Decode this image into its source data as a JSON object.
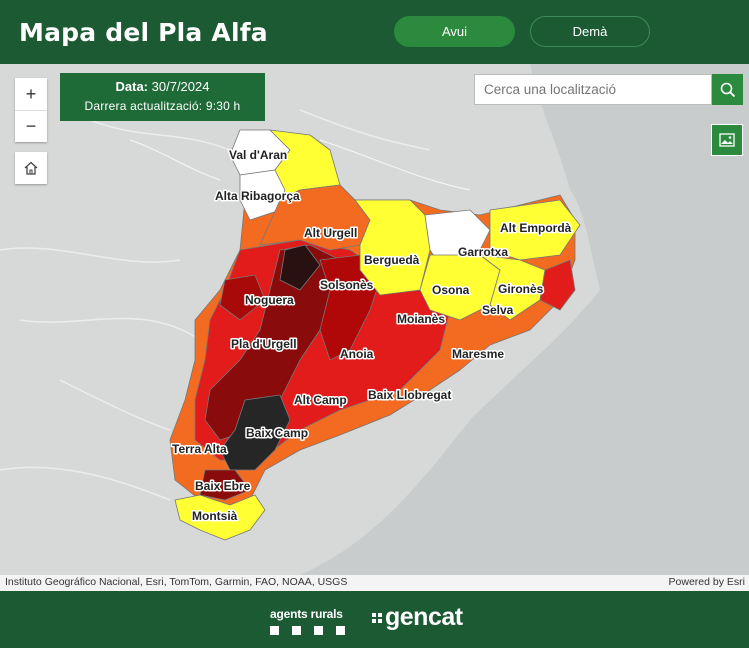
{
  "header": {
    "title": "Mapa del Pla Alfa"
  },
  "tabs": [
    {
      "label": "Avui"
    },
    {
      "label": "Demà"
    }
  ],
  "date_box": {
    "date_label": "Data:",
    "date_value": "30/7/2024",
    "updated": "Darrera actualització: 9:30 h"
  },
  "search": {
    "placeholder": "Cerca una localització"
  },
  "zoom": {
    "plus": "+",
    "minus": "−"
  },
  "map": {
    "regions": [
      {
        "name": "Val d'Aran",
        "level_color": "#ffffff"
      },
      {
        "name": "Alta Ribagorça",
        "level_color": "#ffffff"
      },
      {
        "name": "Alt Urgell",
        "level_color": "#f26b21"
      },
      {
        "name": "Berguedà",
        "level_color": "#ffff33"
      },
      {
        "name": "Garrotxa",
        "level_color": "#ffffff"
      },
      {
        "name": "Alt Empordà",
        "level_color": "#ffff33"
      },
      {
        "name": "Solsonès",
        "level_color": "#cc0000"
      },
      {
        "name": "Osona",
        "level_color": "#ffff33"
      },
      {
        "name": "Gironès",
        "level_color": "#ffff33"
      },
      {
        "name": "Noguera",
        "level_color": "#e21b1b"
      },
      {
        "name": "Selva",
        "level_color": "#ffff33"
      },
      {
        "name": "Moianès",
        "level_color": "#e21b1b"
      },
      {
        "name": "Pla d'Urgell",
        "level_color": "#e21b1b"
      },
      {
        "name": "Anoia",
        "level_color": "#8a0b0b"
      },
      {
        "name": "Maresme",
        "level_color": "#f26b21"
      },
      {
        "name": "Alt Camp",
        "level_color": "#e21b1b"
      },
      {
        "name": "Baix Llobregat",
        "level_color": "#f26b21"
      },
      {
        "name": "Baix Camp",
        "level_color": "#222222"
      },
      {
        "name": "Terra Alta",
        "level_color": "#8a0b0b"
      },
      {
        "name": "Baix Ebre",
        "level_color": "#8a0b0b"
      },
      {
        "name": "Montsià",
        "level_color": "#ffff33"
      }
    ]
  },
  "attribution": {
    "left": "Instituto Geográfico Nacional, Esri, TomTom, Garmin, FAO, NOAA, USGS",
    "right": "Powered by Esri"
  },
  "footer": {
    "agents": "agents rurals",
    "gencat": "gencat"
  },
  "colors": {
    "brand_green": "#1c5a33",
    "accent_green": "#2b8a3e"
  }
}
